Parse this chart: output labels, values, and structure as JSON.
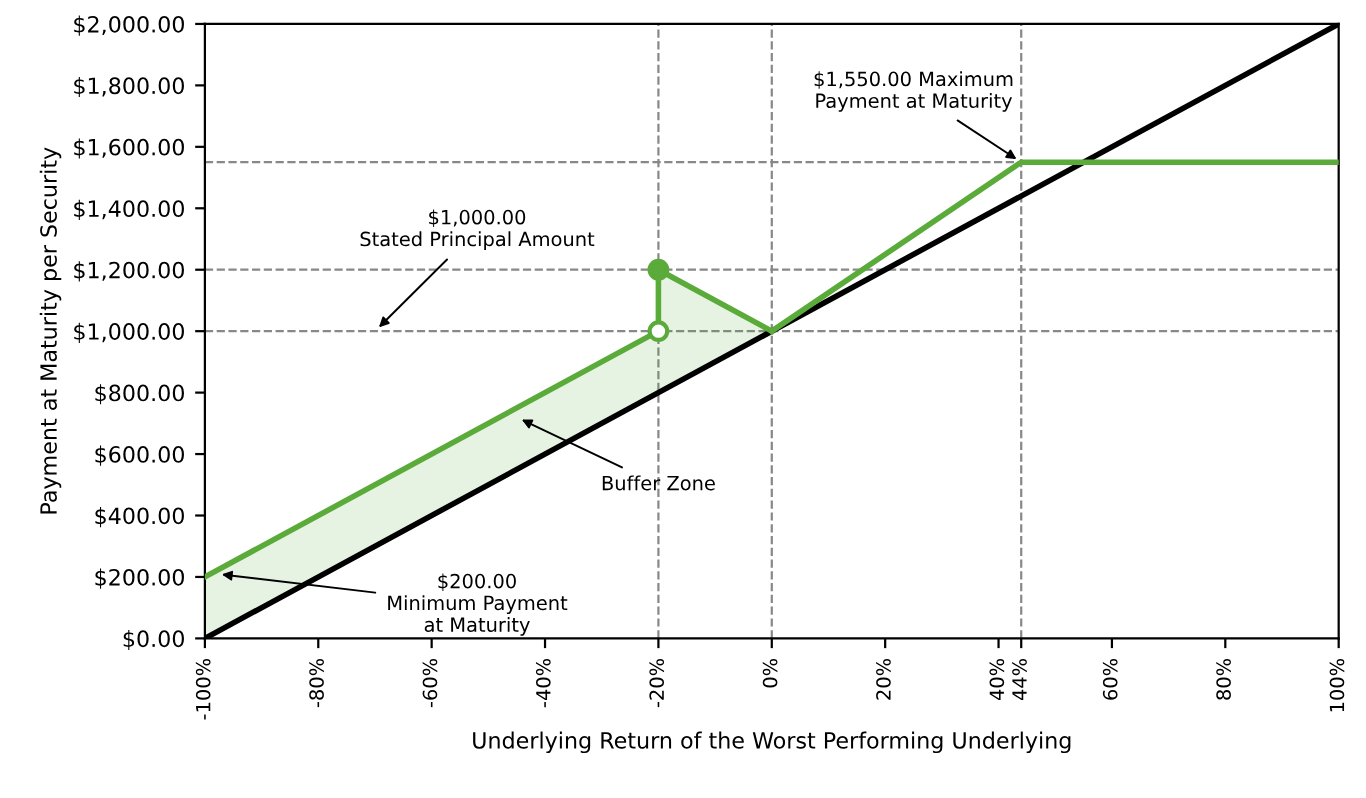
{
  "chart_data": {
    "type": "line",
    "xlabel": "Underlying Return of the Worst Performing Underlying",
    "ylabel": "Payment at Maturity per Security",
    "xlim": [
      -100,
      100
    ],
    "ylim": [
      0,
      2000
    ],
    "xticks": [
      {
        "value": -100,
        "label": "-100%"
      },
      {
        "value": -80,
        "label": "-80%"
      },
      {
        "value": -60,
        "label": "-60%"
      },
      {
        "value": -40,
        "label": "-40%"
      },
      {
        "value": -20,
        "label": "-20%"
      },
      {
        "value": 0,
        "label": "0%"
      },
      {
        "value": 20,
        "label": "20%"
      },
      {
        "value": 40,
        "label": "40%"
      },
      {
        "value": 44,
        "label": "44%"
      },
      {
        "value": 60,
        "label": "60%"
      },
      {
        "value": 80,
        "label": "80%"
      },
      {
        "value": 100,
        "label": "100%"
      }
    ],
    "yticks": [
      {
        "value": 0,
        "label": "$0.00"
      },
      {
        "value": 200,
        "label": "$200.00"
      },
      {
        "value": 400,
        "label": "$400.00"
      },
      {
        "value": 600,
        "label": "$600.00"
      },
      {
        "value": 800,
        "label": "$800.00"
      },
      {
        "value": 1000,
        "label": "$1,000.00"
      },
      {
        "value": 1200,
        "label": "$1,200.00"
      },
      {
        "value": 1400,
        "label": "$1,400.00"
      },
      {
        "value": 1600,
        "label": "$1,600.00"
      },
      {
        "value": 1800,
        "label": "$1,800.00"
      },
      {
        "value": 2000,
        "label": "$2,000.00"
      }
    ],
    "grid": false,
    "series": [
      {
        "color": "#000000",
        "x": [
          -100,
          100
        ],
        "values": [
          0,
          2000
        ]
      },
      {
        "color": "#5aab3a",
        "x": [
          -100,
          -20,
          -20,
          0
        ],
        "values": [
          200,
          1000,
          1200,
          1000
        ],
        "lower": [
          0,
          800,
          800,
          1000
        ],
        "upper": [
          200,
          1000,
          1200,
          1000
        ]
      },
      {
        "color": "#5aab3a",
        "x": [
          0,
          44,
          100
        ],
        "values": [
          1000,
          1550,
          1550
        ]
      },
      {
        "type": "scatter",
        "color": "#5aab3a",
        "colors": [
          "#ffffff",
          "#5aab3a"
        ],
        "marker": "circle",
        "x": [
          -20,
          -20
        ],
        "values": [
          1000,
          1200
        ]
      }
    ],
    "ref_lines": [
      {
        "axis": "y",
        "value": 1550,
        "line_style": "dashed",
        "color": "#888888"
      },
      {
        "axis": "y",
        "value": 1200,
        "line_style": "dashed",
        "color": "#888888"
      },
      {
        "axis": "y",
        "value": 1000,
        "line_style": "dashed",
        "color": "#888888"
      },
      {
        "axis": "x",
        "value": -20,
        "line_style": "dashed",
        "color": "#888888"
      },
      {
        "axis": "x",
        "value": 0,
        "line_style": "dashed",
        "color": "#888888"
      },
      {
        "axis": "x",
        "value": 44,
        "line_style": "dashed",
        "color": "#888888"
      }
    ],
    "annotations": [
      {
        "text": "$1,550.00 Maximum\nPayment at Maturity",
        "x": 44,
        "y": 1550
      },
      {
        "text": "$1,000.00\nStated Principal Amount",
        "x": -70,
        "y": 1000
      },
      {
        "text": "Buffer Zone",
        "x": -45,
        "y": 720
      },
      {
        "text": "$200.00\nMinimum Payment\nat Maturity",
        "x": -98,
        "y": 210
      }
    ]
  }
}
